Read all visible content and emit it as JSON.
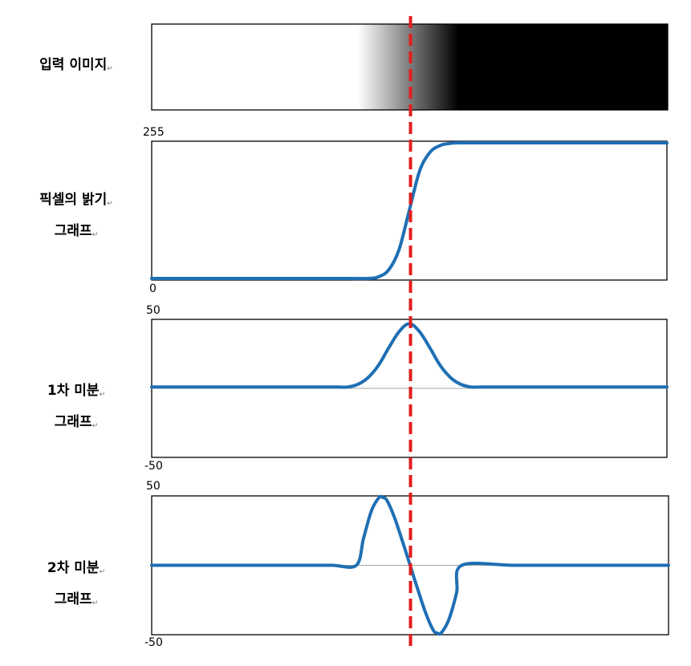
{
  "row_labels": {
    "input_image": "입력 이미지",
    "brightness_line1": "픽셀의 밝기",
    "brightness_line2": "그래프",
    "first_line1": "1차 미분",
    "first_line2": "그래프",
    "second_line1": "2차 미분",
    "second_line2": "그래프"
  },
  "colors": {
    "curve": "#1f6fb4",
    "edge_marker": "#e31d1d",
    "baseline": "#a6a6a6",
    "frame": "#000000"
  },
  "chart_data": [
    {
      "type": "gradient-strip",
      "gradient": {
        "white_until": 0.4,
        "black_from": 0.595
      }
    },
    {
      "type": "line",
      "yticks": [
        "255",
        "0"
      ],
      "ylim": [
        0,
        255
      ],
      "xlim": [
        0,
        1
      ],
      "series": [
        {
          "x": [
            0,
            0.1,
            0.2,
            0.3,
            0.38,
            0.42,
            0.44,
            0.46,
            0.48,
            0.5,
            0.52,
            0.54,
            0.56,
            0.58,
            0.6,
            0.7,
            0.8,
            0.9,
            1.0
          ],
          "values": [
            0,
            0,
            0,
            0,
            0,
            0,
            3,
            16,
            54,
            128,
            202,
            237,
            250,
            254,
            255,
            255,
            255,
            255,
            255
          ]
        }
      ]
    },
    {
      "type": "line",
      "yticks": [
        "50",
        "-50"
      ],
      "ylim": [
        -50,
        50
      ],
      "xlim": [
        0,
        1
      ],
      "baseline": 0,
      "series": [
        {
          "x": [
            0,
            0.1,
            0.2,
            0.3,
            0.36,
            0.38,
            0.4,
            0.42,
            0.44,
            0.46,
            0.48,
            0.5,
            0.52,
            0.54,
            0.56,
            0.58,
            0.6,
            0.62,
            0.64,
            0.7,
            0.8,
            0.9,
            1.0
          ],
          "values": [
            1,
            1,
            1,
            1,
            1,
            1,
            3,
            8,
            17,
            30,
            42,
            48,
            42,
            30,
            17,
            8,
            3,
            1,
            1,
            1,
            1,
            1,
            1
          ]
        }
      ]
    },
    {
      "type": "line",
      "yticks": [
        "50",
        "-50"
      ],
      "ylim": [
        -50,
        50
      ],
      "xlim": [
        0,
        1
      ],
      "baseline": 0,
      "series": [
        {
          "x": [
            0,
            0.1,
            0.2,
            0.3,
            0.35,
            0.396,
            0.41,
            0.425,
            0.44,
            0.447,
            0.455,
            0.47,
            0.485,
            0.5,
            0.515,
            0.53,
            0.545,
            0.553,
            0.56,
            0.575,
            0.59,
            0.6,
            0.7,
            0.8,
            0.9,
            1.0
          ],
          "values": [
            0,
            0,
            0,
            0,
            0,
            0,
            20,
            40,
            50,
            50,
            48,
            35,
            18,
            0,
            -18,
            -35,
            -48,
            -50,
            -50,
            -40,
            -20,
            0,
            0,
            0,
            0,
            0
          ]
        }
      ]
    }
  ]
}
